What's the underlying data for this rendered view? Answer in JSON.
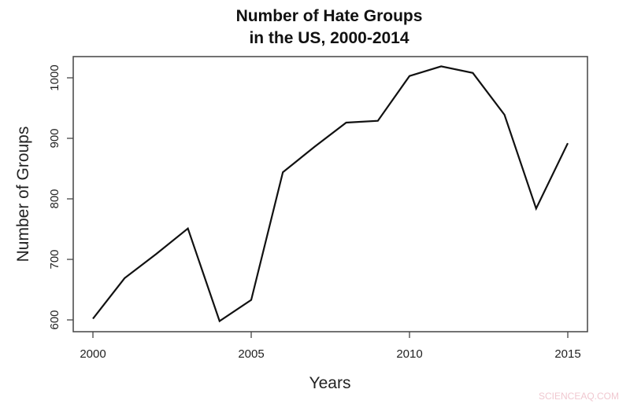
{
  "chart_data": {
    "type": "line",
    "title": "Number of Hate Groups\nin the US, 2000-2014",
    "title_lines": [
      "Number of Hate Groups",
      "in the US, 2000-2014"
    ],
    "xlabel": "Years",
    "ylabel": "Number of Groups",
    "x": [
      2000,
      2001,
      2002,
      2003,
      2004,
      2005,
      2006,
      2007,
      2008,
      2009,
      2010,
      2011,
      2012,
      2013,
      2014,
      2015
    ],
    "series": [
      {
        "name": "Number of Groups",
        "values": [
          602,
          669,
          709,
          751,
          598,
          633,
          844,
          886,
          926,
          929,
          1003,
          1019,
          1008,
          939,
          784,
          892
        ]
      }
    ],
    "xticks": [
      2000,
      2005,
      2010,
      2015
    ],
    "yticks": [
      600,
      700,
      800,
      900,
      1000
    ],
    "xlim": [
      1999.4,
      2015.6
    ],
    "ylim": [
      580,
      1040
    ],
    "grid": false,
    "legend": null,
    "line_color": "#111111"
  },
  "watermark": "SCIENCEAQ.COM"
}
